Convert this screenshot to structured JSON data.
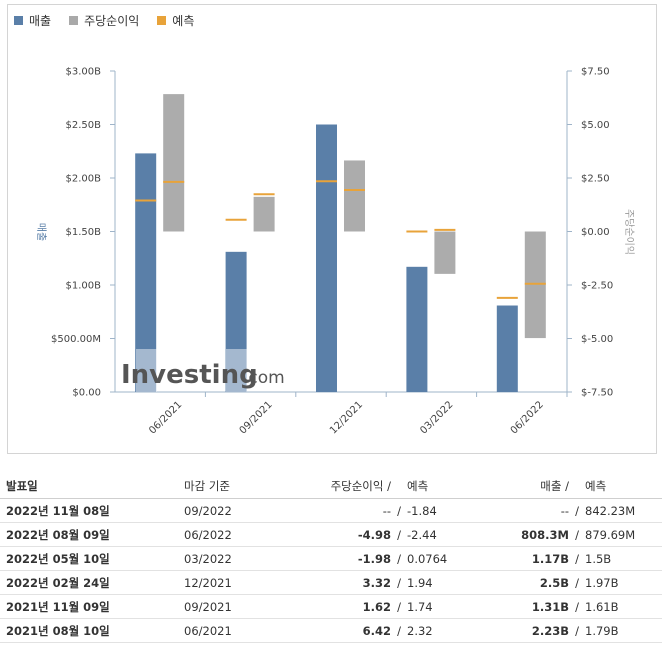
{
  "legend": [
    {
      "label": "매출",
      "color": "#5a7fa8"
    },
    {
      "label": "주당순이익",
      "color": "#a9a9a9"
    },
    {
      "label": "예측",
      "color": "#e8a33a"
    }
  ],
  "watermark": {
    "brand": "Investing",
    "suffix": ".com"
  },
  "chart_data": {
    "type": "bar",
    "categories": [
      "06/2021",
      "09/2021",
      "12/2021",
      "03/2022",
      "06/2022"
    ],
    "y_left": {
      "label": "매출",
      "min": 0,
      "max": 3.0,
      "ticks": [
        0,
        0.5,
        1.0,
        1.5,
        2.0,
        2.5,
        3.0
      ],
      "tick_labels": [
        "$0.00",
        "$500.00M",
        "$1.00B",
        "$1.50B",
        "$2.00B",
        "$2.50B",
        "$3.00B"
      ]
    },
    "y_right": {
      "label": "주당순이익",
      "min": -7.5,
      "max": 7.5,
      "ticks": [
        -7.5,
        -5,
        -2.5,
        0,
        2.5,
        5,
        7.5
      ],
      "tick_labels": [
        "$-7.50",
        "$-5.00",
        "$-2.50",
        "$0.00",
        "$2.50",
        "$5.00",
        "$7.50"
      ]
    },
    "series": [
      {
        "name": "매출",
        "axis": "left",
        "values": [
          2.23,
          1.31,
          2.5,
          1.17,
          0.8083
        ]
      },
      {
        "name": "매출 예측",
        "axis": "left",
        "values": [
          1.79,
          1.61,
          1.97,
          1.5,
          0.87969
        ]
      },
      {
        "name": "주당순이익",
        "axis": "right",
        "values": [
          6.42,
          1.62,
          3.32,
          -1.98,
          -4.98
        ]
      },
      {
        "name": "주당순이익 예측",
        "axis": "right",
        "values": [
          2.32,
          1.74,
          1.94,
          0.0764,
          -2.44
        ]
      }
    ]
  },
  "table": {
    "headers": {
      "date": "발표일",
      "period": "마감 기준",
      "eps": "주당순이익 /",
      "eps_forecast": "예측",
      "revenue": "매출 /",
      "revenue_forecast": "예측"
    },
    "rows": [
      {
        "date": "2022년 11월 08일",
        "period": "09/2022",
        "eps": "--",
        "eps_sign": "neutral",
        "eps_forecast": "-1.84",
        "revenue": "--",
        "rev_sign": "neutral",
        "revenue_forecast": "842.23M"
      },
      {
        "date": "2022년 08월 09일",
        "period": "06/2022",
        "eps": "-4.98",
        "eps_sign": "neg",
        "eps_forecast": "-2.44",
        "revenue": "808.3M",
        "rev_sign": "neg",
        "revenue_forecast": "879.69M"
      },
      {
        "date": "2022년 05월 10일",
        "period": "03/2022",
        "eps": "-1.98",
        "eps_sign": "neg",
        "eps_forecast": "0.0764",
        "revenue": "1.17B",
        "rev_sign": "neg",
        "revenue_forecast": "1.5B"
      },
      {
        "date": "2022년 02월 24일",
        "period": "12/2021",
        "eps": "3.32",
        "eps_sign": "pos",
        "eps_forecast": "1.94",
        "revenue": "2.5B",
        "rev_sign": "pos",
        "revenue_forecast": "1.97B"
      },
      {
        "date": "2021년 11월 09일",
        "period": "09/2021",
        "eps": "1.62",
        "eps_sign": "neg",
        "eps_forecast": "1.74",
        "revenue": "1.31B",
        "rev_sign": "neg",
        "revenue_forecast": "1.61B"
      },
      {
        "date": "2021년 08월 10일",
        "period": "06/2021",
        "eps": "6.42",
        "eps_sign": "pos",
        "eps_forecast": "2.32",
        "revenue": "2.23B",
        "rev_sign": "pos",
        "revenue_forecast": "1.79B"
      }
    ]
  }
}
